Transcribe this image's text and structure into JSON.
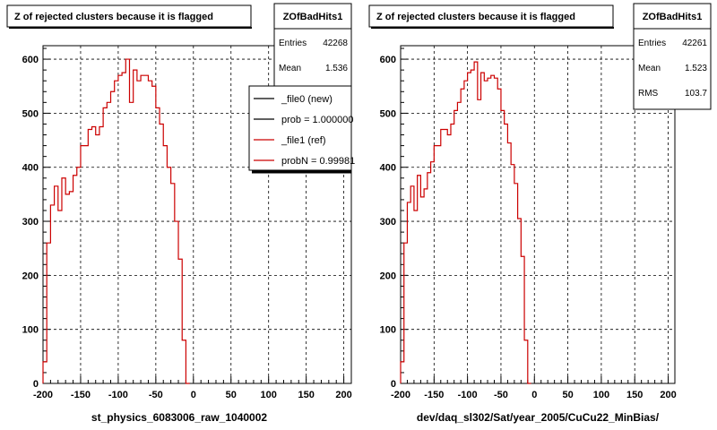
{
  "chart_data": [
    {
      "type": "histogram",
      "title": "Z of rejected clusters  because it is flagged",
      "xlabel": "st_physics_6083006_raw_1040002",
      "xlim": [
        -200,
        210
      ],
      "ylim": [
        0,
        625
      ],
      "xticks": [
        -200,
        -150,
        -100,
        -50,
        0,
        50,
        100,
        150,
        200
      ],
      "yticks": [
        0,
        100,
        200,
        300,
        400,
        500,
        600
      ],
      "grid": true,
      "series_color": "#cc0000",
      "bin_width": 5,
      "bin_start": -200,
      "values": [
        40,
        260,
        330,
        365,
        320,
        380,
        350,
        355,
        385,
        400,
        440,
        440,
        470,
        475,
        460,
        475,
        510,
        520,
        540,
        560,
        570,
        575,
        600,
        520,
        580,
        560,
        570,
        570,
        560,
        550,
        510,
        480,
        440,
        400,
        370,
        300,
        230,
        80,
        0
      ],
      "stats_box": {
        "title": "ZOfBadHits1",
        "entries": [
          {
            "label": "Entries",
            "value": "42268"
          },
          {
            "label": "Mean",
            "value": "1.536"
          }
        ]
      },
      "legend": {
        "placement": "top-right",
        "entries": [
          {
            "label": "_file0 (new)",
            "color": "#000000"
          },
          {
            "label": "prob = 1.000000",
            "color": "#000000"
          },
          {
            "label": "_file1 (ref)",
            "color": "#cc0000"
          },
          {
            "label": "probN = 0.99981",
            "color": "#cc0000"
          }
        ]
      }
    },
    {
      "type": "histogram",
      "title": "Z of rejected clusters  because it is flagged",
      "xlabel": "dev/daq_sl302/Sat/year_2005/CuCu22_MinBias/",
      "xlim": [
        -200,
        210
      ],
      "ylim": [
        0,
        625
      ],
      "xticks": [
        -200,
        -150,
        -100,
        -50,
        0,
        50,
        100,
        150,
        200
      ],
      "yticks": [
        0,
        100,
        200,
        300,
        400,
        500,
        600
      ],
      "grid": true,
      "series_color": "#cc0000",
      "bin_width": 5,
      "bin_start": -200,
      "values": [
        40,
        260,
        335,
        365,
        320,
        385,
        345,
        360,
        390,
        410,
        440,
        440,
        470,
        470,
        460,
        480,
        505,
        520,
        545,
        560,
        575,
        580,
        595,
        525,
        575,
        560,
        565,
        570,
        565,
        545,
        505,
        480,
        445,
        405,
        370,
        305,
        235,
        80,
        0
      ],
      "stats_box": {
        "title": "ZOfBadHits1",
        "entries": [
          {
            "label": "Entries",
            "value": "42261"
          },
          {
            "label": "Mean",
            "value": "1.523"
          },
          {
            "label": "RMS",
            "value": "103.7"
          }
        ]
      }
    }
  ]
}
